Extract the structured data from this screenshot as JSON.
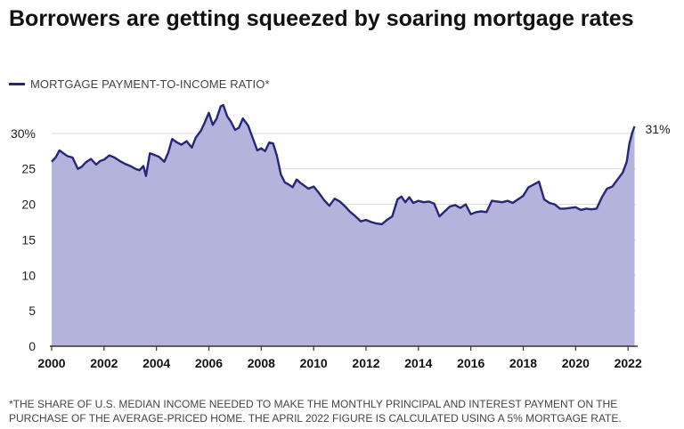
{
  "chart_data": {
    "type": "area",
    "title": "Borrowers are getting squeezed by soaring mortgage rates",
    "legend": {
      "label": "MORTGAGE PAYMENT-TO-INCOME RATIO*",
      "placement": "top-left"
    },
    "ylim": [
      0,
      35
    ],
    "yticks": [
      "0",
      "5",
      "10",
      "15",
      "20",
      "25",
      "30%"
    ],
    "ytick_values": [
      0,
      5,
      10,
      15,
      20,
      25,
      30
    ],
    "xlim": [
      2000,
      2022.3
    ],
    "xticks": [
      "2000",
      "2002",
      "2004",
      "2006",
      "2008",
      "2010",
      "2012",
      "2014",
      "2016",
      "2018",
      "2020",
      "2022"
    ],
    "xtick_values": [
      2000,
      2002,
      2004,
      2006,
      2008,
      2010,
      2012,
      2014,
      2016,
      2018,
      2020,
      2022
    ],
    "grid": true,
    "end_label": "31%",
    "colors": {
      "line": "#27267a",
      "fill": "#b3b3db",
      "grid": "#d8d8d8",
      "axis": "#333333"
    },
    "series": [
      {
        "name": "MORTGAGE PAYMENT-TO-INCOME RATIO*",
        "x": [
          2000.0,
          2000.15,
          2000.3,
          2000.45,
          2000.6,
          2000.8,
          2001.0,
          2001.15,
          2001.3,
          2001.5,
          2001.7,
          2001.85,
          2002.0,
          2002.2,
          2002.4,
          2002.6,
          2002.8,
          2003.0,
          2003.2,
          2003.35,
          2003.5,
          2003.6,
          2003.75,
          2003.9,
          2004.1,
          2004.3,
          2004.45,
          2004.6,
          2004.75,
          2004.95,
          2005.15,
          2005.35,
          2005.5,
          2005.7,
          2005.85,
          2006.0,
          2006.15,
          2006.3,
          2006.45,
          2006.55,
          2006.7,
          2006.85,
          2007.0,
          2007.15,
          2007.3,
          2007.5,
          2007.7,
          2007.85,
          2008.0,
          2008.15,
          2008.3,
          2008.45,
          2008.6,
          2008.75,
          2008.9,
          2009.05,
          2009.2,
          2009.35,
          2009.5,
          2009.65,
          2009.8,
          2010.0,
          2010.2,
          2010.4,
          2010.6,
          2010.8,
          2011.0,
          2011.2,
          2011.4,
          2011.6,
          2011.8,
          2012.0,
          2012.2,
          2012.4,
          2012.6,
          2012.8,
          2013.0,
          2013.2,
          2013.35,
          2013.5,
          2013.65,
          2013.8,
          2014.0,
          2014.2,
          2014.4,
          2014.6,
          2014.8,
          2015.0,
          2015.2,
          2015.4,
          2015.6,
          2015.8,
          2016.0,
          2016.2,
          2016.4,
          2016.6,
          2016.8,
          2017.0,
          2017.2,
          2017.4,
          2017.6,
          2017.8,
          2018.0,
          2018.2,
          2018.4,
          2018.6,
          2018.8,
          2019.0,
          2019.2,
          2019.4,
          2019.6,
          2019.8,
          2020.0,
          2020.2,
          2020.4,
          2020.6,
          2020.8,
          2021.0,
          2021.2,
          2021.4,
          2021.6,
          2021.8,
          2021.95,
          2022.05,
          2022.15,
          2022.25
        ],
        "values": [
          26.0,
          26.6,
          27.6,
          27.2,
          26.8,
          26.6,
          25.0,
          25.3,
          25.9,
          26.4,
          25.6,
          26.1,
          26.3,
          26.9,
          26.6,
          26.1,
          25.7,
          25.4,
          25.0,
          24.8,
          25.4,
          24.0,
          27.2,
          27.0,
          26.7,
          26.0,
          27.3,
          29.2,
          28.8,
          28.4,
          28.9,
          28.0,
          29.4,
          30.4,
          31.6,
          32.9,
          31.2,
          32.1,
          33.8,
          34.0,
          32.4,
          31.6,
          30.5,
          30.8,
          32.1,
          31.1,
          29.1,
          27.6,
          27.9,
          27.5,
          28.7,
          28.6,
          26.8,
          24.2,
          23.1,
          22.8,
          22.4,
          23.5,
          23.0,
          22.6,
          22.2,
          22.5,
          21.6,
          20.6,
          19.8,
          20.8,
          20.4,
          19.7,
          18.9,
          18.3,
          17.6,
          17.8,
          17.5,
          17.3,
          17.2,
          17.8,
          18.3,
          20.7,
          21.1,
          20.3,
          21.0,
          20.2,
          20.5,
          20.3,
          20.4,
          20.1,
          18.3,
          19.0,
          19.7,
          19.9,
          19.5,
          20.0,
          18.6,
          18.9,
          19.0,
          18.9,
          20.5,
          20.4,
          20.3,
          20.5,
          20.2,
          20.7,
          21.2,
          22.4,
          22.8,
          23.2,
          20.7,
          20.2,
          20.0,
          19.4,
          19.4,
          19.5,
          19.6,
          19.2,
          19.4,
          19.3,
          19.4,
          21.0,
          22.2,
          22.5,
          23.5,
          24.5,
          26.0,
          28.5,
          30.0,
          31.0
        ]
      }
    ]
  },
  "footnote": "*THE SHARE OF U.S. MEDIAN INCOME NEEDED TO MAKE THE MONTHLY PRINCIPAL AND INTEREST PAYMENT ON THE PURCHASE OF THE AVERAGE-PRICED HOME. THE APRIL 2022 FIGURE IS CALCULATED USING A 5% MORTGAGE RATE."
}
